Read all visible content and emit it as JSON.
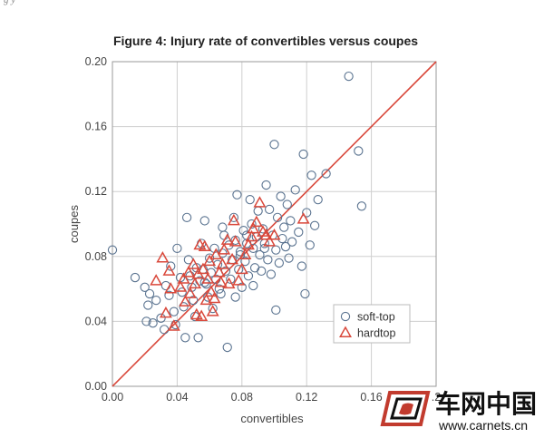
{
  "caption": "Figure 4: Injury rate of convertibles versus coupes",
  "header_fragment": "g                                                  y",
  "watermark": {
    "brand": "车网中国",
    "url": "www.carnets.cn"
  },
  "chart_data": {
    "type": "scatter",
    "title": "Figure 4: Injury rate of convertibles versus coupes",
    "xlabel": "convertibles",
    "ylabel": "coupes",
    "xlim": [
      0,
      0.2
    ],
    "ylim": [
      0,
      0.2
    ],
    "xticks": [
      "0.00",
      "0.04",
      "0.08",
      "0.12",
      "0.16",
      ".2"
    ],
    "yticks": [
      "0.00",
      "0.04",
      "0.08",
      "0.12",
      "0.16",
      "0.20"
    ],
    "grid": true,
    "legend_position": "bottom-right",
    "reference_line": {
      "from": [
        0,
        0
      ],
      "to": [
        0.2,
        0.2
      ],
      "color": "#d9483b"
    },
    "series": [
      {
        "name": "soft-top",
        "marker": "circle",
        "color": "#5a7390",
        "points": [
          [
            0.0,
            0.084
          ],
          [
            0.014,
            0.067
          ],
          [
            0.02,
            0.061
          ],
          [
            0.022,
            0.05
          ],
          [
            0.021,
            0.04
          ],
          [
            0.025,
            0.039
          ],
          [
            0.023,
            0.057
          ],
          [
            0.027,
            0.053
          ],
          [
            0.03,
            0.042
          ],
          [
            0.032,
            0.035
          ],
          [
            0.033,
            0.062
          ],
          [
            0.035,
            0.056
          ],
          [
            0.036,
            0.074
          ],
          [
            0.038,
            0.046
          ],
          [
            0.039,
            0.038
          ],
          [
            0.04,
            0.085
          ],
          [
            0.042,
            0.067
          ],
          [
            0.043,
            0.058
          ],
          [
            0.044,
            0.049
          ],
          [
            0.045,
            0.03
          ],
          [
            0.046,
            0.104
          ],
          [
            0.047,
            0.078
          ],
          [
            0.048,
            0.068
          ],
          [
            0.049,
            0.061
          ],
          [
            0.05,
            0.053
          ],
          [
            0.051,
            0.043
          ],
          [
            0.052,
            0.073
          ],
          [
            0.053,
            0.03
          ],
          [
            0.054,
            0.065
          ],
          [
            0.055,
            0.088
          ],
          [
            0.056,
            0.072
          ],
          [
            0.057,
            0.102
          ],
          [
            0.058,
            0.063
          ],
          [
            0.059,
            0.055
          ],
          [
            0.06,
            0.079
          ],
          [
            0.061,
            0.07
          ],
          [
            0.062,
            0.048
          ],
          [
            0.063,
            0.085
          ],
          [
            0.064,
            0.066
          ],
          [
            0.065,
            0.075
          ],
          [
            0.066,
            0.06
          ],
          [
            0.067,
            0.057
          ],
          [
            0.068,
            0.082
          ],
          [
            0.069,
            0.093
          ],
          [
            0.07,
            0.071
          ],
          [
            0.071,
            0.024
          ],
          [
            0.072,
            0.087
          ],
          [
            0.073,
            0.066
          ],
          [
            0.074,
            0.078
          ],
          [
            0.075,
            0.104
          ],
          [
            0.076,
            0.09
          ],
          [
            0.077,
            0.118
          ],
          [
            0.078,
            0.072
          ],
          [
            0.079,
            0.083
          ],
          [
            0.08,
            0.061
          ],
          [
            0.081,
            0.096
          ],
          [
            0.082,
            0.077
          ],
          [
            0.083,
            0.088
          ],
          [
            0.084,
            0.068
          ],
          [
            0.085,
            0.115
          ],
          [
            0.086,
            0.1
          ],
          [
            0.087,
            0.085
          ],
          [
            0.088,
            0.073
          ],
          [
            0.089,
            0.092
          ],
          [
            0.09,
            0.108
          ],
          [
            0.091,
            0.081
          ],
          [
            0.092,
            0.071
          ],
          [
            0.093,
            0.097
          ],
          [
            0.094,
            0.088
          ],
          [
            0.095,
            0.124
          ],
          [
            0.096,
            0.078
          ],
          [
            0.097,
            0.109
          ],
          [
            0.098,
            0.069
          ],
          [
            0.099,
            0.093
          ],
          [
            0.1,
            0.149
          ],
          [
            0.101,
            0.084
          ],
          [
            0.102,
            0.104
          ],
          [
            0.103,
            0.076
          ],
          [
            0.104,
            0.117
          ],
          [
            0.105,
            0.091
          ],
          [
            0.106,
            0.098
          ],
          [
            0.107,
            0.086
          ],
          [
            0.108,
            0.112
          ],
          [
            0.109,
            0.079
          ],
          [
            0.11,
            0.102
          ],
          [
            0.111,
            0.089
          ],
          [
            0.113,
            0.121
          ],
          [
            0.115,
            0.095
          ],
          [
            0.117,
            0.074
          ],
          [
            0.118,
            0.143
          ],
          [
            0.119,
            0.057
          ],
          [
            0.12,
            0.107
          ],
          [
            0.122,
            0.087
          ],
          [
            0.123,
            0.13
          ],
          [
            0.125,
            0.099
          ],
          [
            0.127,
            0.115
          ],
          [
            0.101,
            0.047
          ],
          [
            0.076,
            0.055
          ],
          [
            0.068,
            0.098
          ],
          [
            0.087,
            0.062
          ],
          [
            0.057,
            0.064
          ],
          [
            0.146,
            0.191
          ],
          [
            0.132,
            0.131
          ],
          [
            0.152,
            0.145
          ],
          [
            0.154,
            0.111
          ],
          [
            0.094,
            0.085
          ],
          [
            0.083,
            0.093
          ],
          [
            0.079,
            0.081
          ]
        ]
      },
      {
        "name": "hardtop",
        "marker": "triangle",
        "color": "#d9483b",
        "points": [
          [
            0.027,
            0.065
          ],
          [
            0.031,
            0.079
          ],
          [
            0.033,
            0.045
          ],
          [
            0.035,
            0.071
          ],
          [
            0.036,
            0.06
          ],
          [
            0.038,
            0.037
          ],
          [
            0.042,
            0.061
          ],
          [
            0.044,
            0.066
          ],
          [
            0.045,
            0.052
          ],
          [
            0.047,
            0.07
          ],
          [
            0.048,
            0.057
          ],
          [
            0.05,
            0.075
          ],
          [
            0.051,
            0.063
          ],
          [
            0.052,
            0.044
          ],
          [
            0.053,
            0.069
          ],
          [
            0.054,
            0.087
          ],
          [
            0.055,
            0.043
          ],
          [
            0.056,
            0.072
          ],
          [
            0.057,
            0.086
          ],
          [
            0.058,
            0.053
          ],
          [
            0.059,
            0.066
          ],
          [
            0.06,
            0.077
          ],
          [
            0.061,
            0.058
          ],
          [
            0.062,
            0.046
          ],
          [
            0.063,
            0.054
          ],
          [
            0.064,
            0.081
          ],
          [
            0.066,
            0.07
          ],
          [
            0.067,
            0.064
          ],
          [
            0.068,
            0.075
          ],
          [
            0.069,
            0.084
          ],
          [
            0.071,
            0.09
          ],
          [
            0.072,
            0.063
          ],
          [
            0.074,
            0.078
          ],
          [
            0.075,
            0.102
          ],
          [
            0.076,
            0.089
          ],
          [
            0.078,
            0.065
          ],
          [
            0.08,
            0.072
          ],
          [
            0.082,
            0.081
          ],
          [
            0.084,
            0.087
          ],
          [
            0.086,
            0.092
          ],
          [
            0.087,
            0.097
          ],
          [
            0.089,
            0.101
          ],
          [
            0.091,
            0.113
          ],
          [
            0.093,
            0.095
          ],
          [
            0.095,
            0.093
          ],
          [
            0.097,
            0.089
          ],
          [
            0.1,
            0.093
          ],
          [
            0.118,
            0.103
          ]
        ]
      }
    ]
  }
}
